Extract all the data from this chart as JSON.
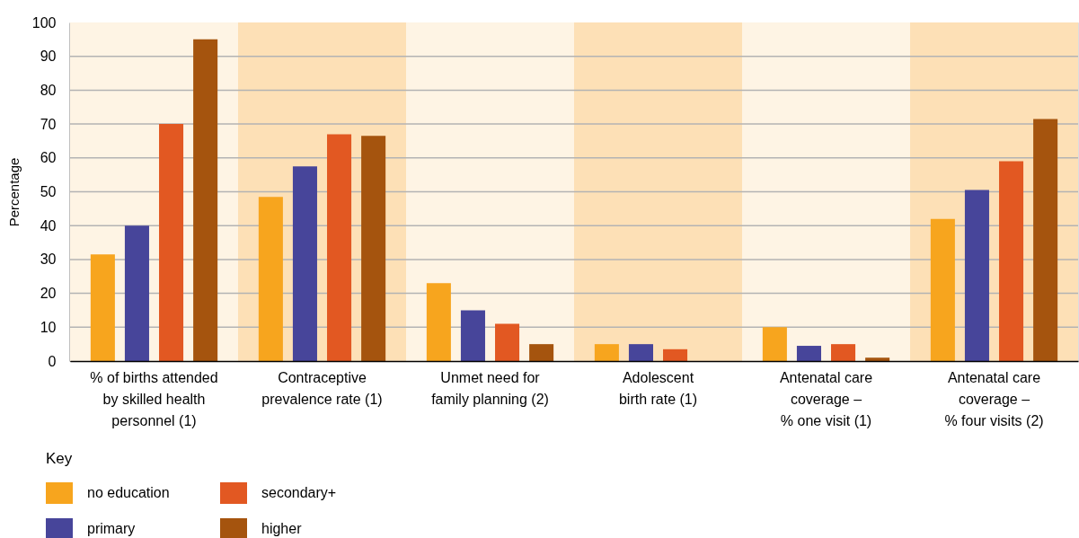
{
  "chart_data": {
    "type": "bar",
    "ylabel": "Percentage",
    "legend_title": "Key",
    "categories": [
      "% of births attended\nby skilled health\npersonnel (1)",
      "Contraceptive\nprevalence rate (1)",
      "Unmet need for\nfamily planning (2)",
      "Adolescent\nbirth rate (1)",
      "Antenatal care\ncoverage –\n% one visit (1)",
      "Antenatal care\ncoverage –\n% four visits (2)"
    ],
    "series": [
      {
        "name": "no education",
        "color": "#f7a51e",
        "values": [
          31.5,
          48.5,
          23,
          5,
          10,
          42
        ]
      },
      {
        "name": "primary",
        "color": "#47459a",
        "values": [
          40,
          57.5,
          15,
          5,
          4.5,
          50.5
        ]
      },
      {
        "name": "secondary+",
        "color": "#e25822",
        "values": [
          70,
          67,
          11,
          3.5,
          5,
          59
        ]
      },
      {
        "name": "higher",
        "color": "#a5540e",
        "values": [
          95,
          66.5,
          5,
          null,
          1,
          71.5
        ]
      }
    ],
    "ylim": [
      0,
      100
    ],
    "yticks": [
      0,
      10,
      20,
      30,
      40,
      50,
      60,
      70,
      80,
      90,
      100
    ],
    "grid": "y",
    "legend": "bottom left",
    "bands": [
      {
        "axis": "x",
        "from": "% of births attended\nby skilled health\npersonnel (1)",
        "to": "% of births attended\nby skilled health\npersonnel (1)",
        "color": "#fef4e4"
      },
      {
        "axis": "x",
        "from": "Contraceptive\nprevalence rate (1)",
        "to": "Contraceptive\nprevalence rate (1)",
        "color": "#fde0b6"
      },
      {
        "axis": "x",
        "from": "Unmet need for\nfamily planning (2)",
        "to": "Unmet need for\nfamily planning (2)",
        "color": "#fef4e4"
      },
      {
        "axis": "x",
        "from": "Adolescent\nbirth rate (1)",
        "to": "Adolescent\nbirth rate (1)",
        "color": "#fde0b6"
      },
      {
        "axis": "x",
        "from": "Antenatal care\ncoverage –\n% one visit (1)",
        "to": "Antenatal care\ncoverage –\n% one visit (1)",
        "color": "#fef4e4"
      },
      {
        "axis": "x",
        "from": "Antenatal care\ncoverage –\n% four visits (2)",
        "to": "Antenatal care\ncoverage –\n% four visits (2)",
        "color": "#fde0b6"
      }
    ]
  }
}
